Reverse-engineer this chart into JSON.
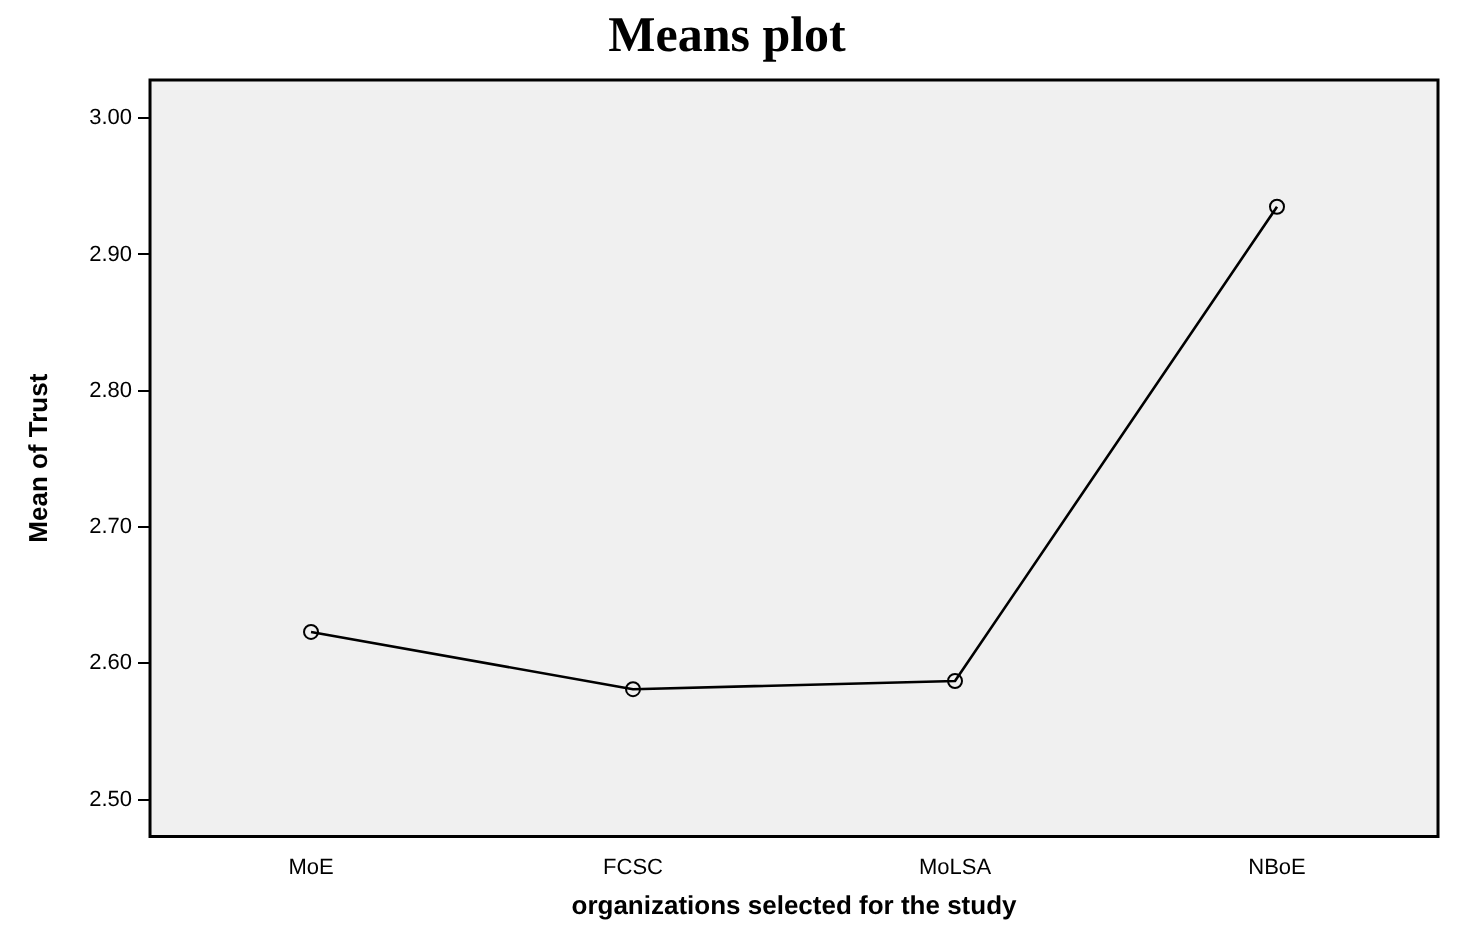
{
  "chart_data": {
    "type": "line",
    "title": "Means plot",
    "xlabel": "organizations selected for the study",
    "ylabel": "Mean of Trust",
    "categories": [
      "MoE",
      "FCSC",
      "MoLSA",
      "NBoE"
    ],
    "series": [
      {
        "color": "#000000",
        "values": [
          2.623,
          2.581,
          2.587,
          2.935
        ]
      }
    ],
    "ylim": [
      2.473,
      3.028
    ],
    "yticks": [
      {
        "value": 2.5,
        "label": "2.50"
      },
      {
        "value": 2.6,
        "label": "2.60"
      },
      {
        "value": 2.7,
        "label": "2.70"
      },
      {
        "value": 2.8,
        "label": "2.80"
      },
      {
        "value": 2.9,
        "label": "2.90"
      },
      {
        "value": 3.0,
        "label": "3.00"
      }
    ],
    "grid": false,
    "legend": false,
    "marker": "circle",
    "line_style": "solid"
  }
}
